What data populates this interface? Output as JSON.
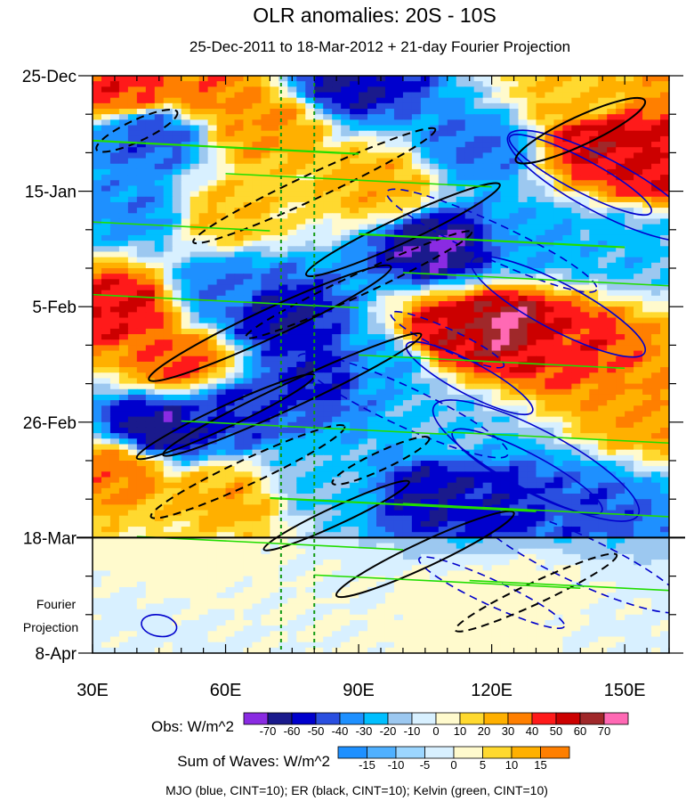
{
  "chart_data": {
    "type": "heatmap",
    "title": "OLR anomalies: 20S - 10S",
    "subtitle": "25-Dec-2011 to 18-Mar-2012 + 21-day Fourier Projection",
    "x_axis": {
      "range": [
        30,
        160
      ],
      "tick_values": [
        30,
        60,
        90,
        120,
        150
      ],
      "tick_labels": [
        "30E",
        "60E",
        "90E",
        "120E",
        "150E"
      ]
    },
    "y_axis": {
      "direction": "time increasing downward",
      "range_days": [
        0,
        105
      ],
      "tick_days": [
        0,
        21,
        42,
        63,
        84,
        105
      ],
      "tick_labels": [
        "25-Dec",
        "15-Jan",
        "5-Feb",
        "26-Feb",
        "18-Mar",
        "8-Apr"
      ],
      "projection_label": [
        "Fourier",
        "Projection"
      ],
      "observation_end_day": 84
    },
    "dashed_reference_longitudes": [
      72.5,
      80
    ],
    "obs_colorbar": {
      "label": "Obs: W/m^2",
      "levels": [
        -70,
        -60,
        -50,
        -40,
        -30,
        -20,
        -10,
        0,
        10,
        20,
        30,
        40,
        50,
        60,
        70
      ],
      "colors": [
        "#8a2be2",
        "#1a1a8c",
        "#0000cd",
        "#2a4fe0",
        "#1e90ff",
        "#00bfff",
        "#9cc8f0",
        "#d8f0ff",
        "#fffacd",
        "#ffd92f",
        "#ffb000",
        "#ff7f00",
        "#ff1a1a",
        "#cc0000",
        "#a0282a",
        "#ff69b4"
      ]
    },
    "wave_colorbar": {
      "label": "Sum of Waves: W/m^2",
      "levels": [
        -15,
        -10,
        -5,
        0,
        5,
        10,
        15
      ],
      "colors": [
        "#1e90ff",
        "#4fb0ff",
        "#9cd6ff",
        "#d8f0ff",
        "#fffacd",
        "#ffd92f",
        "#ffb000",
        "#ff7f00"
      ]
    },
    "overlays": [
      {
        "name": "MJO",
        "color": "#0000cc",
        "cint": 10
      },
      {
        "name": "ER",
        "color": "#000000",
        "cint": 10
      },
      {
        "name": "Kelvin",
        "color": "#22dd00",
        "cint": 10
      }
    ],
    "footer": "MJO (blue, CINT=10); ER (black, CINT=10); Kelvin (green, CINT=10)",
    "anomaly_features": [
      {
        "lon": 37,
        "day": 2,
        "value": 45
      },
      {
        "lon": 55,
        "day": 2,
        "value": 35
      },
      {
        "lon": 88,
        "day": 1,
        "value": -60
      },
      {
        "lon": 140,
        "day": 4,
        "value": 20
      },
      {
        "lon": 43,
        "day": 11,
        "value": -45
      },
      {
        "lon": 69,
        "day": 9,
        "value": 30
      },
      {
        "lon": 145,
        "day": 12,
        "value": 55
      },
      {
        "lon": 155,
        "day": 16,
        "value": 50
      },
      {
        "lon": 117,
        "day": 13,
        "value": -40
      },
      {
        "lon": 95,
        "day": 20,
        "value": 25
      },
      {
        "lon": 40,
        "day": 24,
        "value": -35
      },
      {
        "lon": 60,
        "day": 25,
        "value": 20
      },
      {
        "lon": 108,
        "day": 31,
        "value": -70
      },
      {
        "lon": 130,
        "day": 30,
        "value": -30
      },
      {
        "lon": 150,
        "day": 31,
        "value": -25
      },
      {
        "lon": 37,
        "day": 42,
        "value": 50
      },
      {
        "lon": 60,
        "day": 39,
        "value": -40
      },
      {
        "lon": 72,
        "day": 44,
        "value": -60
      },
      {
        "lon": 123,
        "day": 46,
        "value": 70
      },
      {
        "lon": 112,
        "day": 47,
        "value": 55
      },
      {
        "lon": 135,
        "day": 49,
        "value": 45
      },
      {
        "lon": 95,
        "day": 53,
        "value": -30
      },
      {
        "lon": 50,
        "day": 52,
        "value": 40
      },
      {
        "lon": 82,
        "day": 54,
        "value": -55
      },
      {
        "lon": 45,
        "day": 64,
        "value": -65
      },
      {
        "lon": 62,
        "day": 61,
        "value": -50
      },
      {
        "lon": 155,
        "day": 60,
        "value": 30
      },
      {
        "lon": 110,
        "day": 64,
        "value": -20
      },
      {
        "lon": 35,
        "day": 72,
        "value": 35
      },
      {
        "lon": 60,
        "day": 77,
        "value": 25
      },
      {
        "lon": 82,
        "day": 74,
        "value": -20
      },
      {
        "lon": 120,
        "day": 79,
        "value": -55
      },
      {
        "lon": 107,
        "day": 76,
        "value": -60
      },
      {
        "lon": 140,
        "day": 80,
        "value": -45
      },
      {
        "lon": 48,
        "day": 87,
        "value": 10
      },
      {
        "lon": 40,
        "day": 100,
        "value": -5
      },
      {
        "lon": 115,
        "day": 97,
        "value": 15
      },
      {
        "lon": 130,
        "day": 93,
        "value": 8
      },
      {
        "lon": 85,
        "day": 95,
        "value": 0
      },
      {
        "lon": 150,
        "day": 100,
        "value": -3
      }
    ]
  }
}
